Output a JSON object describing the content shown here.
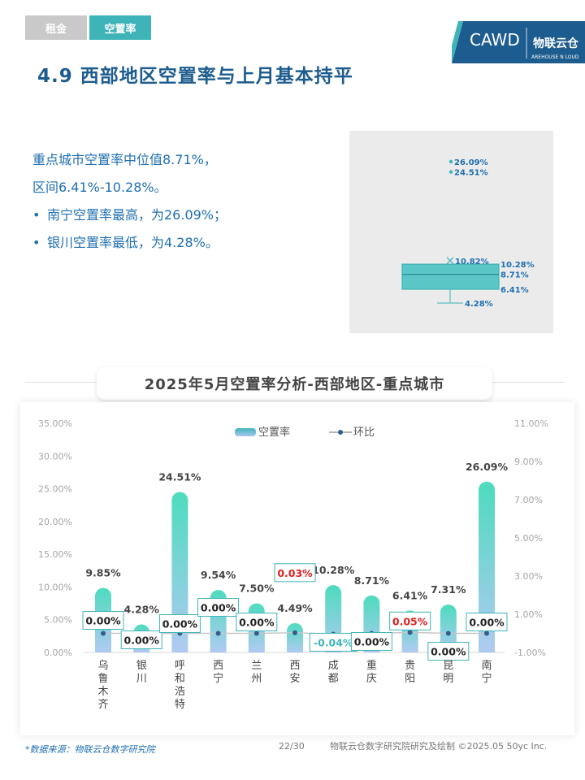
{
  "tabs": [
    {
      "label": "租金"
    },
    {
      "label": "空置率"
    }
  ],
  "logo": {
    "text": "CAWD",
    "text2": "物联云仓",
    "sub": "AREHOUSE N LOUD"
  },
  "page_title": "4.9 西部地区空置率与上月基本持平",
  "summary": {
    "line1": "重点城市空置率中位值8.71%，",
    "line2": "区间6.41%-10.28%。",
    "bullet_symbol": "•",
    "bullets": [
      "南宁空置率最高，为26.09%；",
      "银川空置率最低，为4.28%。"
    ]
  },
  "boxplot": {
    "outliers": [
      26.09,
      24.51
    ],
    "mean": 10.82,
    "q3": 10.28,
    "median": 8.71,
    "q1": 6.41,
    "min": 4.28,
    "labels": {
      "outlier_high": "26.09%",
      "outlier_low": "24.51%",
      "mean": "10.82%",
      "q3": "10.28%",
      "median": "8.71%",
      "q1": "6.41%",
      "min": "4.28%"
    }
  },
  "chart_title": "2025年5月空置率分析-西部地区-重点城市",
  "chart_data": {
    "type": "bar",
    "categories": [
      "乌鲁木齐",
      "银川",
      "呼和浩特",
      "西宁",
      "兰州",
      "西安",
      "成都",
      "重庆",
      "贵阳",
      "昆明",
      "南宁"
    ],
    "series": [
      {
        "name": "空置率",
        "axis": "left",
        "values": [
          9.85,
          4.28,
          24.51,
          9.54,
          7.5,
          4.49,
          10.28,
          8.71,
          6.41,
          7.31,
          26.09
        ],
        "labels": [
          "9.85%",
          "4.28%",
          "24.51%",
          "9.54%",
          "7.50%",
          "4.49%",
          "10.28%",
          "8.71%",
          "6.41%",
          "7.31%",
          "26.09%"
        ]
      },
      {
        "name": "环比",
        "type": "line",
        "axis": "right",
        "values": [
          0.0,
          0.0,
          0.0,
          0.0,
          0.0,
          0.03,
          -0.04,
          0.0,
          0.05,
          0.0,
          0.0
        ],
        "labels": [
          "0.00%",
          "0.00%",
          "0.00%",
          "0.00%",
          "0.00%",
          "0.03%",
          "-0.04%",
          "0.00%",
          "0.05%",
          "0.00%",
          "0.00%"
        ]
      }
    ],
    "left_axis": {
      "min": 0,
      "max": 35,
      "ticks": [
        "0.00%",
        "5.00%",
        "10.00%",
        "15.00%",
        "20.00%",
        "25.00%",
        "30.00%",
        "35.00%"
      ]
    },
    "right_axis": {
      "min": -1,
      "max": 11,
      "ticks": [
        "-1.00%",
        "1.00%",
        "3.00%",
        "5.00%",
        "7.00%",
        "9.00%",
        "11.00%"
      ]
    },
    "legend_position": "top-center",
    "grid": false
  },
  "colors": {
    "bar_top": "#3ed8b8",
    "bar_bottom": "#a9c6f0",
    "positive_change": "#e02020",
    "negative_change": "#3fb4b8",
    "zero_change": "#222222",
    "box_border": "#3fb4b8",
    "accent_blue": "#1f6fb0"
  },
  "footer": {
    "source": "*数据来源：物联云仓数字研究院",
    "page": "22/30",
    "copyright": "物联云仓数字研究院研究及绘制   ©2025.05 50yc Inc."
  }
}
